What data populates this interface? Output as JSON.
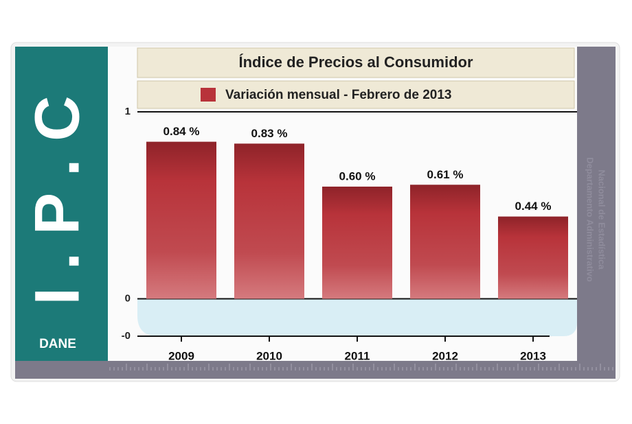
{
  "chart_data": {
    "type": "bar",
    "title": "Índice de Precios al Consumidor",
    "series": [
      {
        "name": "Variación mensual - Febrero de 2013",
        "color": "#b8333a",
        "values": [
          0.84,
          0.83,
          0.6,
          0.61,
          0.44
        ],
        "value_labels": [
          "0.84 %",
          "0.83 %",
          "0.60 %",
          "0.61 %",
          "0.44 %"
        ]
      }
    ],
    "categories": [
      "2009",
      "2010",
      "2011",
      "2012",
      "2013"
    ],
    "ylim": [
      -0.2,
      1
    ],
    "yticks": [
      {
        "value": -0.2,
        "label": "-0"
      },
      0,
      1
    ]
  },
  "branding": {
    "logo": "I . P . C",
    "brand": "DANE",
    "side_text": [
      "Departamento Administrativo",
      "Nacional de Estadística"
    ]
  }
}
